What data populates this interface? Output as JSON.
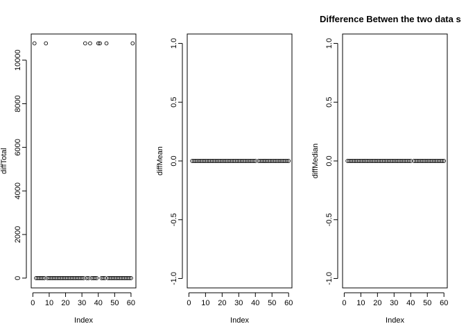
{
  "figure_title": "Difference Betwen the two data s",
  "colors": {
    "ink": "#000000",
    "background": "#ffffff"
  },
  "chart_data": [
    {
      "type": "scatter",
      "name": "diffTotal-panel",
      "title": "",
      "xlabel": "Index",
      "ylabel": "diffTotal",
      "xlim": [
        -1,
        63
      ],
      "ylim": [
        -450,
        11200
      ],
      "x_ticks": [
        0,
        10,
        20,
        30,
        40,
        50,
        60
      ],
      "x_tick_labels": [
        "0",
        "10",
        "20",
        "30",
        "40",
        "50",
        "60"
      ],
      "y_ticks": [
        0,
        2000,
        4000,
        6000,
        8000,
        10000
      ],
      "y_tick_labels": [
        "0",
        "2000",
        "4000",
        "6000",
        "8000",
        "10000"
      ],
      "x": [
        1,
        2,
        3,
        4,
        5,
        6,
        7,
        8,
        9,
        10,
        11,
        12,
        13,
        14,
        15,
        16,
        17,
        18,
        19,
        20,
        21,
        22,
        23,
        24,
        25,
        26,
        27,
        28,
        29,
        30,
        31,
        32,
        33,
        34,
        35,
        36,
        37,
        38,
        39,
        40,
        41,
        42,
        43,
        44,
        45,
        46,
        47,
        48,
        49,
        50,
        51,
        52,
        53,
        54,
        55,
        56,
        57,
        58,
        59,
        60,
        61
      ],
      "y": [
        10770,
        0,
        0,
        0,
        0,
        0,
        0,
        10770,
        0,
        0,
        0,
        0,
        0,
        0,
        0,
        0,
        0,
        0,
        0,
        0,
        0,
        0,
        0,
        0,
        0,
        0,
        0,
        0,
        0,
        0,
        0,
        10770,
        0,
        0,
        10770,
        0,
        0,
        0,
        0,
        10770,
        10770,
        0,
        0,
        0,
        10770,
        0,
        0,
        0,
        0,
        0,
        0,
        0,
        0,
        0,
        0,
        0,
        0,
        0,
        0,
        0,
        10770
      ]
    },
    {
      "type": "scatter",
      "name": "diffMean-panel",
      "title": "",
      "xlabel": "Index",
      "ylabel": "diffMean",
      "xlim": [
        -1,
        62
      ],
      "ylim": [
        -1.08,
        1.08
      ],
      "x_ticks": [
        0,
        10,
        20,
        30,
        40,
        50,
        60
      ],
      "x_tick_labels": [
        "0",
        "10",
        "20",
        "30",
        "40",
        "50",
        "60"
      ],
      "y_ticks": [
        -1.0,
        -0.5,
        0.0,
        0.5,
        1.0
      ],
      "y_tick_labels": [
        "-1.0",
        "-0.5",
        "0.0",
        "0.5",
        "1.0"
      ],
      "x": [
        2,
        3,
        4,
        5,
        6,
        7,
        8,
        9,
        10,
        11,
        12,
        13,
        14,
        15,
        16,
        17,
        18,
        19,
        20,
        21,
        22,
        23,
        24,
        25,
        26,
        27,
        28,
        29,
        30,
        31,
        32,
        33,
        34,
        35,
        36,
        37,
        38,
        39,
        40,
        42,
        43,
        44,
        45,
        46,
        47,
        48,
        49,
        50,
        51,
        52,
        53,
        54,
        55,
        56,
        57,
        58,
        59,
        60
      ],
      "y": [
        0,
        0,
        0,
        0,
        0,
        0,
        0,
        0,
        0,
        0,
        0,
        0,
        0,
        0,
        0,
        0,
        0,
        0,
        0,
        0,
        0,
        0,
        0,
        0,
        0,
        0,
        0,
        0,
        0,
        0,
        0,
        0,
        0,
        0,
        0,
        0,
        0,
        0,
        0,
        0,
        0,
        0,
        0,
        0,
        0,
        0,
        0,
        0,
        0,
        0,
        0,
        0,
        0,
        0,
        0,
        0,
        0,
        0
      ]
    },
    {
      "type": "scatter",
      "name": "diffMedian-panel",
      "title": "",
      "xlabel": "Index",
      "ylabel": "diffMedian",
      "xlim": [
        -1,
        62
      ],
      "ylim": [
        -1.08,
        1.08
      ],
      "x_ticks": [
        0,
        10,
        20,
        30,
        40,
        50,
        60
      ],
      "x_tick_labels": [
        "0",
        "10",
        "20",
        "30",
        "40",
        "50",
        "60"
      ],
      "y_ticks": [
        -1.0,
        -0.5,
        0.0,
        0.5,
        1.0
      ],
      "y_tick_labels": [
        "-1.0",
        "-0.5",
        "0.0",
        "0.5",
        "1.0"
      ],
      "x": [
        2,
        3,
        4,
        5,
        6,
        7,
        8,
        9,
        10,
        11,
        12,
        13,
        14,
        15,
        16,
        17,
        18,
        19,
        20,
        21,
        22,
        23,
        24,
        25,
        26,
        27,
        28,
        29,
        30,
        31,
        32,
        33,
        34,
        35,
        36,
        37,
        38,
        39,
        40,
        42,
        43,
        44,
        45,
        46,
        47,
        48,
        49,
        50,
        51,
        52,
        53,
        54,
        55,
        56,
        57,
        58,
        59,
        60
      ],
      "y": [
        0,
        0,
        0,
        0,
        0,
        0,
        0,
        0,
        0,
        0,
        0,
        0,
        0,
        0,
        0,
        0,
        0,
        0,
        0,
        0,
        0,
        0,
        0,
        0,
        0,
        0,
        0,
        0,
        0,
        0,
        0,
        0,
        0,
        0,
        0,
        0,
        0,
        0,
        0,
        0,
        0,
        0,
        0,
        0,
        0,
        0,
        0,
        0,
        0,
        0,
        0,
        0,
        0,
        0,
        0,
        0,
        0,
        0
      ]
    }
  ]
}
